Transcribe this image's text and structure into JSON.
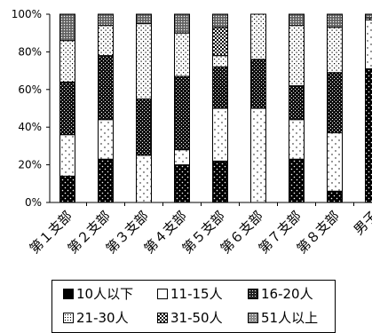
{
  "chart_data": {
    "type": "bar",
    "stacked": true,
    "normalized": true,
    "categories": [
      "第１支部",
      "第２支部",
      "第３支部",
      "第４支部",
      "第５支部",
      "第６支部",
      "第７支部",
      "第８支部",
      "男子"
    ],
    "yticks": [
      "0%",
      "20%",
      "40%",
      "60%",
      "80%",
      "100%"
    ],
    "ylim": [
      0,
      100
    ],
    "grid": false,
    "legend_placement": "bottom",
    "series": [
      {
        "name": "10人以下",
        "pattern": "black-dots",
        "values": [
          14,
          23,
          0,
          20,
          22,
          0,
          23,
          6,
          71
        ]
      },
      {
        "name": "11-15人",
        "pattern": "white-dots",
        "values": [
          22,
          21,
          25,
          8,
          28,
          50,
          21,
          31,
          26
        ]
      },
      {
        "name": "16-20人",
        "pattern": "dense-dark",
        "values": [
          28,
          34,
          30,
          39,
          22,
          26,
          18,
          32,
          0
        ]
      },
      {
        "name": "21-30人",
        "pattern": "light-dots",
        "values": [
          22,
          16,
          40,
          23,
          6,
          24,
          32,
          24,
          1
        ]
      },
      {
        "name": "31-50人",
        "pattern": "checker",
        "values": [
          0,
          0,
          0,
          0,
          15,
          0,
          0,
          0,
          0
        ]
      },
      {
        "name": "51人以上",
        "pattern": "medium-gray",
        "values": [
          14,
          6,
          5,
          10,
          7,
          0,
          6,
          7,
          2
        ]
      }
    ]
  },
  "legend": {
    "items": [
      "10人以下",
      "11-15人",
      "16-20人",
      "21-30人",
      "31-50人",
      "51人以上"
    ]
  }
}
